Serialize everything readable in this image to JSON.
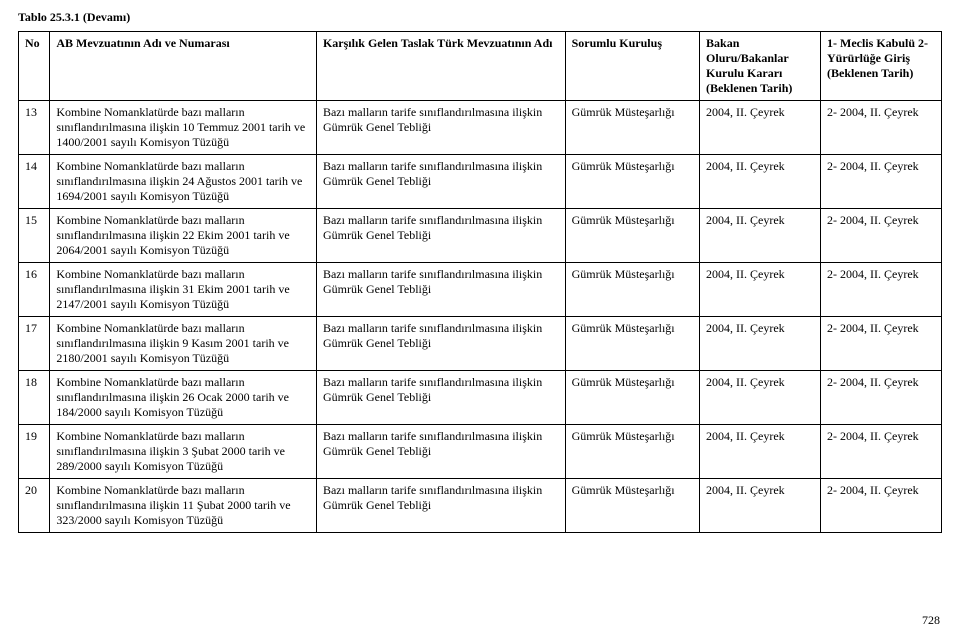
{
  "title": "Tablo 25.3.1 (Devamı)",
  "page_number": "728",
  "headers": {
    "no": "No",
    "ab": "AB Mevzuatının Adı ve Numarası",
    "taslak": "Karşılık Gelen Taslak Türk Mevzuatının Adı",
    "sorumlu": "Sorumlu Kuruluş",
    "bakan": "Bakan Oluru/Bakanlar Kurulu Kararı (Beklenen Tarih)",
    "meclis": "1- Meclis Kabulü\n2-Yürürlüğe Giriş (Beklenen Tarih)"
  },
  "rows": [
    {
      "no": "13",
      "ab": "Kombine Nomanklatürde bazı malların sınıflandırılmasına ilişkin 10 Temmuz 2001 tarih ve 1400/2001 sayılı Komisyon Tüzüğü",
      "taslak": "Bazı malların tarife sınıflandırılmasına ilişkin Gümrük Genel Tebliği",
      "sorumlu": "Gümrük Müsteşarlığı",
      "bakan": "2004, II. Çeyrek",
      "meclis": "2- 2004, II. Çeyrek"
    },
    {
      "no": "14",
      "ab": "Kombine Nomanklatürde bazı malların sınıflandırılmasına ilişkin 24 Ağustos 2001 tarih ve 1694/2001 sayılı Komisyon Tüzüğü",
      "taslak": "Bazı malların tarife sınıflandırılmasına ilişkin Gümrük Genel Tebliği",
      "sorumlu": "Gümrük Müsteşarlığı",
      "bakan": "2004, II. Çeyrek",
      "meclis": "2- 2004, II. Çeyrek"
    },
    {
      "no": "15",
      "ab": "Kombine Nomanklatürde bazı malların sınıflandırılmasına ilişkin 22 Ekim 2001 tarih ve 2064/2001 sayılı Komisyon Tüzüğü",
      "taslak": "Bazı malların tarife sınıflandırılmasına ilişkin Gümrük Genel Tebliği",
      "sorumlu": "Gümrük Müsteşarlığı",
      "bakan": "2004, II. Çeyrek",
      "meclis": "2- 2004, II. Çeyrek"
    },
    {
      "no": "16",
      "ab": "Kombine Nomanklatürde bazı malların sınıflandırılmasına ilişkin 31 Ekim 2001 tarih ve 2147/2001 sayılı Komisyon Tüzüğü",
      "taslak": "Bazı malların tarife sınıflandırılmasına ilişkin Gümrük Genel Tebliği",
      "sorumlu": "Gümrük Müsteşarlığı",
      "bakan": "2004, II. Çeyrek",
      "meclis": "2- 2004, II. Çeyrek"
    },
    {
      "no": "17",
      "ab": "Kombine Nomanklatürde bazı malların sınıflandırılmasına ilişkin 9 Kasım 2001 tarih ve 2180/2001 sayılı Komisyon Tüzüğü",
      "taslak": "Bazı malların tarife sınıflandırılmasına ilişkin Gümrük Genel Tebliği",
      "sorumlu": "Gümrük Müsteşarlığı",
      "bakan": "2004, II. Çeyrek",
      "meclis": "2- 2004, II. Çeyrek"
    },
    {
      "no": "18",
      "ab": "Kombine Nomanklatürde bazı malların sınıflandırılmasına ilişkin 26 Ocak 2000 tarih ve 184/2000 sayılı Komisyon Tüzüğü",
      "taslak": "Bazı malların tarife sınıflandırılmasına ilişkin Gümrük Genel Tebliği",
      "sorumlu": "Gümrük Müsteşarlığı",
      "bakan": "2004, II. Çeyrek",
      "meclis": "2- 2004, II. Çeyrek"
    },
    {
      "no": "19",
      "ab": "Kombine Nomanklatürde bazı malların sınıflandırılmasına ilişkin 3 Şubat 2000 tarih ve 289/2000 sayılı Komisyon Tüzüğü",
      "taslak": "Bazı malların tarife sınıflandırılmasına ilişkin Gümrük Genel Tebliği",
      "sorumlu": "Gümrük Müsteşarlığı",
      "bakan": "2004, II. Çeyrek",
      "meclis": "2- 2004, II. Çeyrek"
    },
    {
      "no": "20",
      "ab": "Kombine Nomanklatürde bazı malların sınıflandırılmasına ilişkin 11 Şubat 2000 tarih ve 323/2000 sayılı Komisyon Tüzüğü",
      "taslak": "Bazı malların tarife sınıflandırılmasına ilişkin Gümrük Genel Tebliği",
      "sorumlu": "Gümrük Müsteşarlığı",
      "bakan": "2004, II. Çeyrek",
      "meclis": "2- 2004, II. Çeyrek"
    }
  ]
}
